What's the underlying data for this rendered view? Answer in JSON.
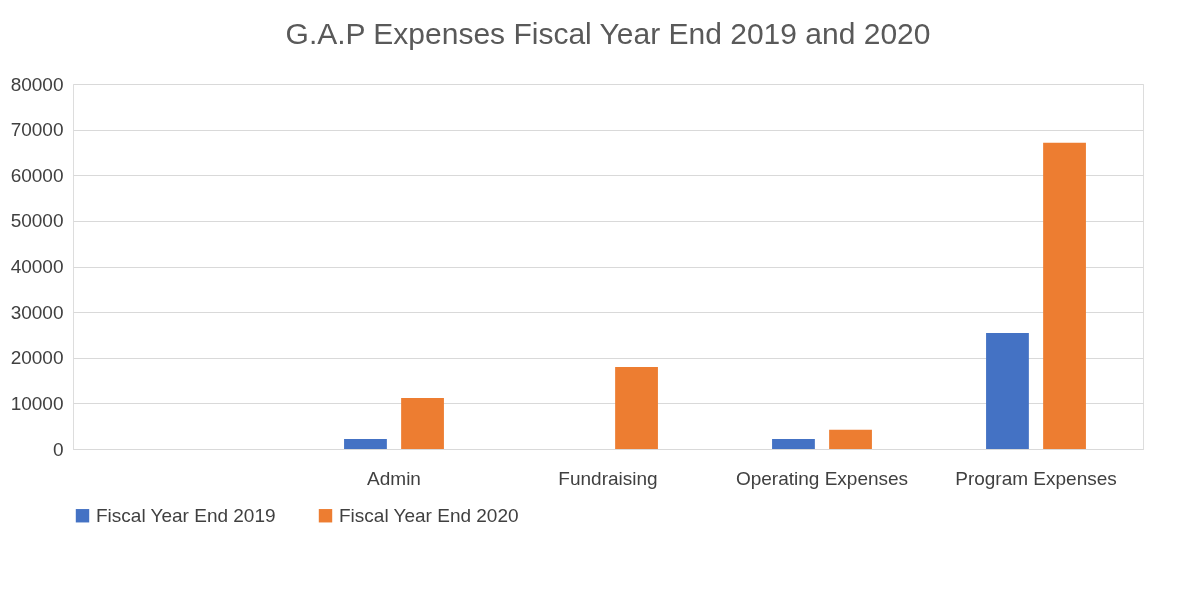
{
  "chart_data": {
    "type": "bar",
    "title": "G.A.P Expenses  Fiscal Year End 2019 and 2020",
    "categories": [
      null,
      "Admin",
      "Fundraising",
      "Operating Expenses",
      "Program Expenses"
    ],
    "series": [
      {
        "name": "Fiscal Year End 2019",
        "color": "#4472c4",
        "values": [
          null,
          2200,
          null,
          2200,
          25400
        ]
      },
      {
        "name": "Fiscal Year End 2020",
        "color": "#ed7d31",
        "values": [
          null,
          11200,
          18000,
          4200,
          67100
        ]
      }
    ],
    "ylim": [
      0,
      80000
    ],
    "yticks": [
      0,
      10000,
      20000,
      30000,
      40000,
      50000,
      60000,
      70000,
      80000
    ],
    "grid": "y",
    "legend": "bottom"
  }
}
